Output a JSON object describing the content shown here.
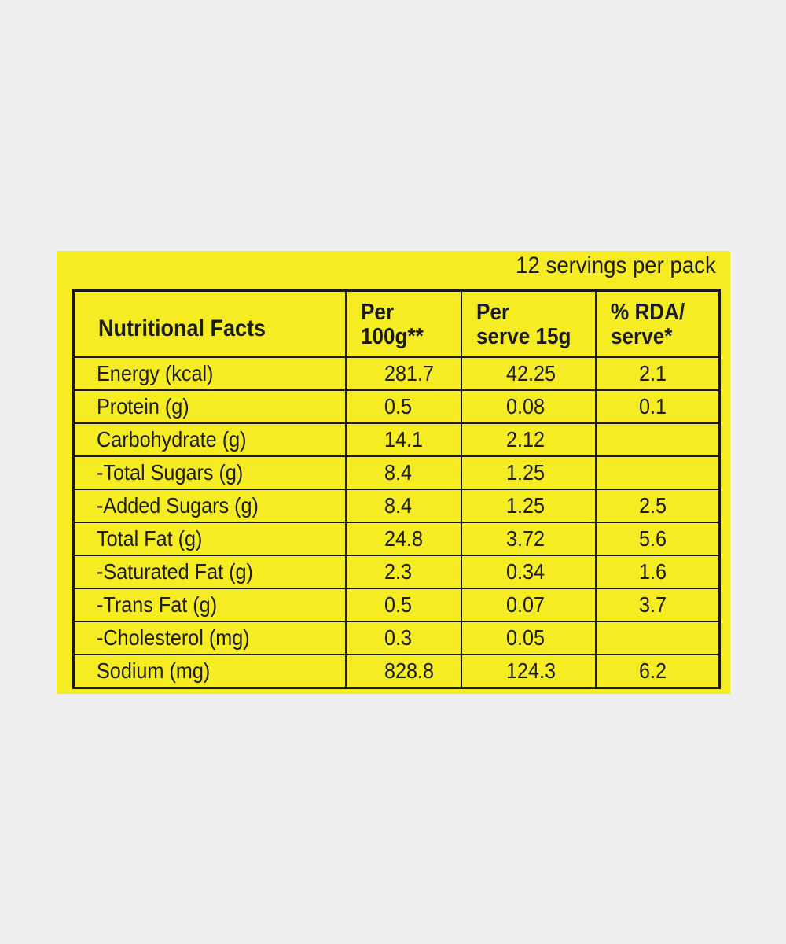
{
  "label": {
    "servings_note": "12 servings per pack",
    "header": {
      "title": "Nutritional Facts",
      "col_per_100g_line1": "Per",
      "col_per_100g_line2": "100g**",
      "col_per_serve_line1": "Per",
      "col_per_serve_line2": "serve 15g",
      "col_rda_line1": "% RDA/",
      "col_rda_line2": "serve*"
    },
    "rows": [
      {
        "name": "Energy (kcal)",
        "per100": "281.7",
        "perServe": "42.25",
        "rda": "2.1"
      },
      {
        "name": "Protein (g)",
        "per100": "0.5",
        "perServe": "0.08",
        "rda": "0.1"
      },
      {
        "name": "Carbohydrate (g)",
        "per100": "14.1",
        "perServe": "2.12",
        "rda": ""
      },
      {
        "name": "-Total Sugars (g)",
        "per100": "8.4",
        "perServe": "1.25",
        "rda": ""
      },
      {
        "name": "-Added Sugars (g)",
        "per100": "8.4",
        "perServe": "1.25",
        "rda": "2.5"
      },
      {
        "name": "Total Fat (g)",
        "per100": "24.8",
        "perServe": "3.72",
        "rda": "5.6"
      },
      {
        "name": "-Saturated Fat (g)",
        "per100": "2.3",
        "perServe": "0.34",
        "rda": "1.6"
      },
      {
        "name": "-Trans Fat (g)",
        "per100": "0.5",
        "perServe": "0.07",
        "rda": "3.7"
      },
      {
        "name": "-Cholesterol (mg)",
        "per100": "0.3",
        "perServe": "0.05",
        "rda": ""
      },
      {
        "name": "Sodium (mg)",
        "per100": "828.8",
        "perServe": "124.3",
        "rda": "6.2"
      }
    ]
  },
  "colors": {
    "background": "#efefef",
    "label_yellow": "#f5ec24",
    "ink": "#1a1a1a"
  }
}
